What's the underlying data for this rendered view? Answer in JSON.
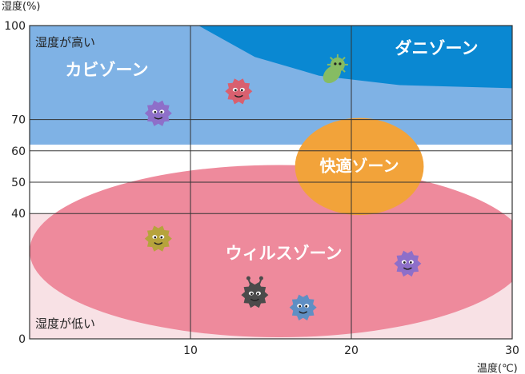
{
  "chart_data": {
    "type": "area",
    "ylabel": "湿度(%)",
    "xlabel": "温度(℃)",
    "xlim": [
      0,
      30
    ],
    "ylim": [
      0,
      100
    ],
    "x_ticks": [
      10,
      20,
      30
    ],
    "y_ticks": [
      0,
      40,
      50,
      60,
      70,
      100
    ],
    "grid": true,
    "corner_labels": {
      "top": "湿度が高い",
      "bottom": "湿度が低い"
    },
    "zones": [
      {
        "name": "カビゾーン",
        "humidity_range": [
          62,
          100
        ],
        "temperature_range": [
          0,
          30
        ],
        "color": "#7FB2E5"
      },
      {
        "name": "ダニゾーン",
        "color": "#0A88D2",
        "boundary": [
          {
            "x": 10.5,
            "y": 100
          },
          {
            "x": 14,
            "y": 90
          },
          {
            "x": 18,
            "y": 84
          },
          {
            "x": 23,
            "y": 81
          },
          {
            "x": 30,
            "y": 80
          }
        ]
      },
      {
        "name": "快適ゾーン",
        "color": "#F2A33A",
        "center": {
          "x": 20.5,
          "y": 55
        },
        "radius": {
          "x": 4,
          "y": 15.5
        }
      },
      {
        "name": "ウィルスゾーン",
        "color": "#EE8A9C",
        "center": {
          "x": 15.5,
          "y": 28
        },
        "radius": {
          "x": 15.5,
          "y": 27.5
        }
      }
    ],
    "low_humidity_band": {
      "y_range": [
        0,
        40
      ],
      "color": "#F8E1E5"
    },
    "mascots": [
      {
        "name": "mold-germ-purple",
        "color": "#8E6FC9",
        "x": 8,
        "y": 72
      },
      {
        "name": "mold-germ-pink",
        "color": "#D9606F",
        "x": 13,
        "y": 79
      },
      {
        "name": "mite-green",
        "color": "#86BC63",
        "x": 19,
        "y": 86
      },
      {
        "name": "virus-olive",
        "color": "#B6A33C",
        "x": 8,
        "y": 32
      },
      {
        "name": "virus-black",
        "color": "#4B4B4B",
        "x": 14,
        "y": 14
      },
      {
        "name": "virus-blue",
        "color": "#5F8FC4",
        "x": 17,
        "y": 10
      },
      {
        "name": "virus-purple",
        "color": "#8E6FC9",
        "x": 23.5,
        "y": 24
      }
    ]
  }
}
